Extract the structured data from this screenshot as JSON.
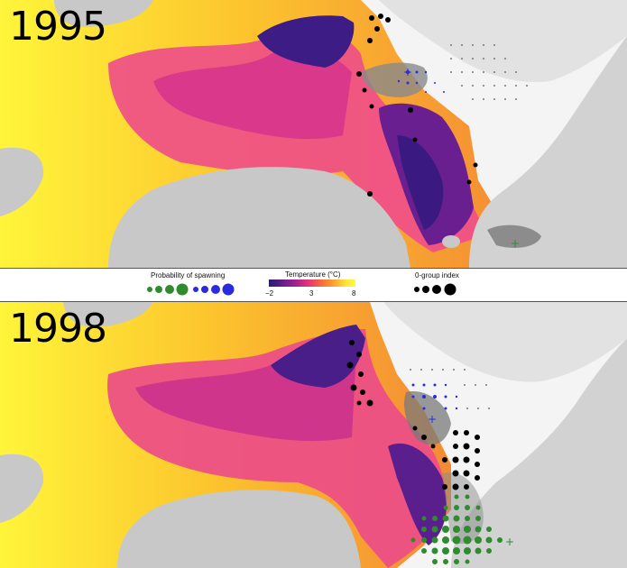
{
  "panels": [
    {
      "year": "1995"
    },
    {
      "year": "1998"
    }
  ],
  "legend": {
    "spawning": {
      "title": "Probability of spawning",
      "colors": [
        "#2e8b2e",
        "#2a2ae0"
      ]
    },
    "temperature": {
      "title": "Temperature (°C)",
      "ticks": [
        "−2",
        "3",
        "8"
      ],
      "colormap": [
        "#2a1d74",
        "#5a1f8a",
        "#a0208f",
        "#e2337a",
        "#f46a3a",
        "#fca332",
        "#fde83a",
        "#fffb3a"
      ]
    },
    "zero_group": {
      "title": "0-group index",
      "color": "#000000"
    }
  },
  "colors": {
    "land": "#c8c8c8",
    "background": "#f4f4f4",
    "warm": "#fff23a",
    "cold": "#3a1a80"
  }
}
